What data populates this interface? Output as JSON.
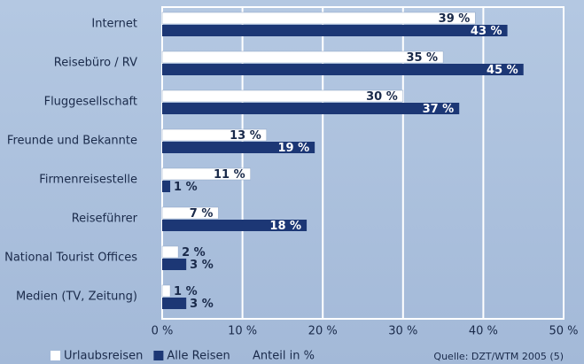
{
  "chart_data": {
    "type": "hbar",
    "categories": [
      "Internet",
      "Reisebüro / RV",
      "Fluggesellschaft",
      "Freunde und Bekannte",
      "Firmenreisestelle",
      "Reiseführer",
      "National Tourist Offices",
      "Medien (TV, Zeitung)"
    ],
    "series": [
      {
        "name": "Urlaubsreisen",
        "color": "#ffffff",
        "values": [
          39,
          35,
          30,
          13,
          11,
          7,
          2,
          1
        ],
        "value_labels": [
          "39 %",
          "35 %",
          "30 %",
          "13 %",
          "11 %",
          "7 %",
          "2 %",
          "1 %"
        ]
      },
      {
        "name": "Alle Reisen",
        "color": "#1c3775",
        "values": [
          43,
          45,
          37,
          19,
          1,
          18,
          3,
          3
        ],
        "value_labels": [
          "43 %",
          "45 %",
          "37 %",
          "19 %",
          "1 %",
          "18 %",
          "3 %",
          "3 %"
        ]
      }
    ],
    "xlim": [
      0,
      50
    ],
    "xticks": [
      {
        "value": 0,
        "label": "0 %"
      },
      {
        "value": 10,
        "label": "10 %"
      },
      {
        "value": 20,
        "label": "20 %"
      },
      {
        "value": 30,
        "label": "30 %"
      },
      {
        "value": 40,
        "label": "40 %"
      },
      {
        "value": 50,
        "label": "50 %"
      }
    ],
    "x_label": "Anteil in %",
    "source": "Quelle: DZT/WTM 2005 (5)",
    "grid": true
  }
}
